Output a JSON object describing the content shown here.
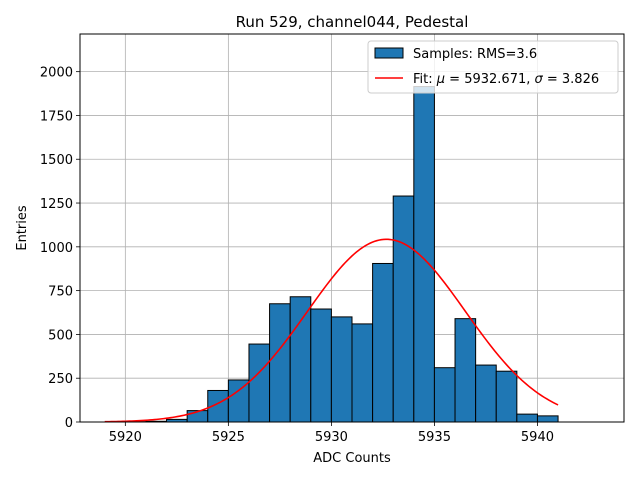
{
  "chart_data": {
    "type": "bar",
    "title": "Run 529, channel044, Pedestal",
    "xlabel": "ADC Counts",
    "ylabel": "Entries",
    "xlim": [
      5917.8,
      5944.2
    ],
    "ylim": [
      0,
      2215
    ],
    "grid": true,
    "x_ticks": [
      5920,
      5925,
      5930,
      5935,
      5940
    ],
    "y_ticks": [
      0,
      250,
      500,
      750,
      1000,
      1250,
      1500,
      1750,
      2000
    ],
    "histogram": {
      "name": "Samples: RMS=3.6",
      "color": "#1f77b4",
      "bins": [
        {
          "x0": 5919,
          "x1": 5920,
          "count": 0
        },
        {
          "x0": 5920,
          "x1": 5921,
          "count": 2
        },
        {
          "x0": 5921,
          "x1": 5922,
          "count": 4
        },
        {
          "x0": 5922,
          "x1": 5923,
          "count": 15
        },
        {
          "x0": 5923,
          "x1": 5924,
          "count": 65
        },
        {
          "x0": 5924,
          "x1": 5925,
          "count": 180
        },
        {
          "x0": 5925,
          "x1": 5926,
          "count": 240
        },
        {
          "x0": 5926,
          "x1": 5927,
          "count": 445
        },
        {
          "x0": 5927,
          "x1": 5928,
          "count": 675
        },
        {
          "x0": 5928,
          "x1": 5929,
          "count": 715
        },
        {
          "x0": 5929,
          "x1": 5930,
          "count": 645
        },
        {
          "x0": 5930,
          "x1": 5931,
          "count": 600
        },
        {
          "x0": 5931,
          "x1": 5932,
          "count": 560
        },
        {
          "x0": 5932,
          "x1": 5933,
          "count": 905
        },
        {
          "x0": 5933,
          "x1": 5934,
          "count": 1290
        },
        {
          "x0": 5934,
          "x1": 5935,
          "count": 1915
        },
        {
          "x0": 5935,
          "x1": 5936,
          "count": 310
        },
        {
          "x0": 5936,
          "x1": 5937,
          "count": 590
        },
        {
          "x0": 5937,
          "x1": 5938,
          "count": 325
        },
        {
          "x0": 5938,
          "x1": 5939,
          "count": 290
        },
        {
          "x0": 5939,
          "x1": 5940,
          "count": 45
        },
        {
          "x0": 5940,
          "x1": 5941,
          "count": 35
        }
      ]
    },
    "fit": {
      "name": "Fit: μ = 5932.671, σ = 3.826",
      "label_prefix": "Fit: ",
      "mu_symbol": "μ",
      "mu_text": " = 5932.671, ",
      "sigma_symbol": "σ",
      "sigma_text": " = 3.826",
      "mu": 5932.671,
      "sigma": 3.826,
      "amplitude": 1043,
      "x_range": [
        5919,
        5941
      ],
      "color": "#ff0000"
    },
    "legend_position": "upper right"
  }
}
